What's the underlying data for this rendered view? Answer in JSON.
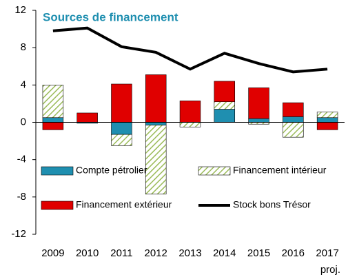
{
  "chart_data": {
    "type": "bar",
    "title": "Sources de financement",
    "categories": [
      "2009",
      "2010",
      "2011",
      "2012",
      "2013",
      "2014",
      "2015",
      "2016",
      "2017"
    ],
    "annotation": "proj.",
    "ylim": [
      -12,
      12
    ],
    "yticks": [
      -12,
      -8,
      -4,
      0,
      4,
      8,
      12
    ],
    "series": [
      {
        "name": "Compte pétrolier",
        "color": "#1f8fb0",
        "values": [
          0.5,
          -0.1,
          -1.3,
          -0.3,
          0,
          1.4,
          0.4,
          0.6,
          0.5
        ]
      },
      {
        "name": "Financement intérieur",
        "color": "#9bbb59",
        "hatch": true,
        "values": [
          3.5,
          0,
          -1.2,
          -7.4,
          -0.5,
          0.8,
          -0.2,
          -1.6,
          0.6
        ]
      },
      {
        "name": "Financement extérieur",
        "color": "#e00000",
        "values": [
          -0.8,
          1.0,
          4.1,
          5.1,
          2.3,
          2.2,
          3.3,
          1.5,
          -0.8
        ]
      },
      {
        "name": "Stock bons Trésor",
        "type": "line",
        "color": "#000000",
        "values": [
          9.8,
          10.1,
          8.1,
          7.5,
          5.7,
          7.4,
          6.3,
          5.4,
          5.7
        ]
      }
    ]
  }
}
